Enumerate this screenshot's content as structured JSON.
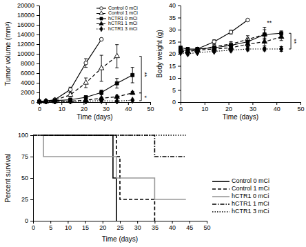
{
  "chart_data": [
    {
      "type": "line",
      "ylabel": "Tumor volume (mm³)",
      "xlabel": "Time (days)",
      "xlim": [
        0,
        50
      ],
      "xticks": [
        0,
        10,
        20,
        30,
        40,
        50
      ],
      "ylim": [
        0,
        20000
      ],
      "yticks": [
        0,
        2000,
        4000,
        6000,
        8000,
        10000,
        12000,
        14000,
        16000,
        18000,
        20000
      ],
      "legend": "upper right",
      "series": [
        {
          "name": "Control 0 mCi",
          "color": "#000000",
          "marker": "circle-open",
          "line_style": "solid",
          "x": [
            0,
            3,
            7,
            14,
            21,
            28
          ],
          "values": [
            150,
            250,
            500,
            2600,
            8100,
            13000
          ],
          "errors": [
            50,
            80,
            150,
            500,
            900,
            null
          ]
        },
        {
          "name": "Control 1 mCi",
          "color": "#000000",
          "marker": "triangle-open",
          "line_style": "dashed",
          "x": [
            0,
            3,
            7,
            14,
            21,
            28,
            35
          ],
          "values": [
            150,
            200,
            400,
            1500,
            4000,
            7000,
            9500
          ],
          "errors": [
            50,
            60,
            100,
            400,
            1000,
            2700,
            2400
          ]
        },
        {
          "name": "hCTR1 0 mCi",
          "color": "#000000",
          "marker": "square",
          "line_style": "solid",
          "x": [
            0,
            3,
            7,
            14,
            21,
            28,
            35,
            42
          ],
          "values": [
            100,
            150,
            300,
            500,
            1000,
            2000,
            3900,
            5600
          ],
          "errors": [
            30,
            40,
            60,
            100,
            300,
            500,
            1000,
            1600
          ]
        },
        {
          "name": "hCTR1 1 mCi",
          "color": "#000000",
          "marker": "triangle",
          "line_style": "dashed",
          "x": [
            0,
            3,
            7,
            14,
            21,
            28,
            35,
            42
          ],
          "values": [
            100,
            120,
            150,
            200,
            400,
            800,
            1100,
            1900
          ],
          "errors": [
            30,
            30,
            40,
            50,
            100,
            150,
            300,
            300
          ]
        },
        {
          "name": "hCTR1 3 mCi",
          "color": "#000000",
          "marker": "diamond",
          "line_style": "dotted",
          "x": [
            0,
            3,
            7,
            14,
            21,
            28,
            35,
            42
          ],
          "values": [
            100,
            100,
            100,
            150,
            200,
            300,
            200,
            400
          ],
          "errors": [
            30,
            30,
            30,
            40,
            50,
            80,
            60,
            100
          ]
        }
      ],
      "annotations": [
        {
          "text": "**",
          "x": 46,
          "y1": 1900,
          "y2": 9500
        },
        {
          "text": "*",
          "x": 46,
          "y1": 300,
          "y2": 1900
        }
      ]
    },
    {
      "type": "line",
      "ylabel": "Body weight (g)",
      "xlabel": "Time (days)",
      "xlim": [
        0,
        50
      ],
      "xticks": [
        0,
        10,
        20,
        30,
        40,
        50
      ],
      "ylim": [
        0,
        40
      ],
      "yticks": [
        0,
        5,
        10,
        15,
        20,
        25,
        30,
        35,
        40
      ],
      "series": [
        {
          "color": "#000000",
          "marker": "circle-open",
          "line_style": "solid",
          "x": [
            0,
            3,
            7,
            14,
            21,
            28
          ],
          "values": [
            21.5,
            21.5,
            22,
            25,
            29,
            34
          ],
          "errors": [
            0.5,
            0.5,
            0.6,
            0.8,
            0.8,
            null
          ]
        },
        {
          "color": "#000000",
          "marker": "triangle-open",
          "line_style": "dashed",
          "x": [
            0,
            3,
            7,
            14,
            21,
            28,
            35
          ],
          "values": [
            21,
            21,
            21.5,
            23,
            24,
            26,
            28
          ],
          "errors": [
            0.5,
            0.5,
            0.6,
            0.8,
            1,
            1.5,
            3
          ]
        },
        {
          "color": "#000000",
          "marker": "square",
          "line_style": "solid",
          "x": [
            0,
            3,
            7,
            14,
            21,
            28,
            35,
            42
          ],
          "values": [
            22.5,
            22,
            22,
            22.5,
            23.5,
            25,
            28,
            28.5
          ],
          "errors": [
            0.6,
            0.6,
            0.6,
            0.8,
            1,
            1.5,
            2,
            1
          ]
        },
        {
          "color": "#000000",
          "marker": "triangle",
          "line_style": "dashed",
          "x": [
            0,
            3,
            7,
            14,
            21,
            28,
            35,
            42
          ],
          "values": [
            22,
            21,
            21.5,
            22,
            22.5,
            24,
            25,
            27
          ],
          "errors": [
            0.5,
            0.5,
            0.5,
            0.6,
            0.8,
            1,
            1.5,
            1.5
          ]
        },
        {
          "color": "#000000",
          "marker": "diamond",
          "line_style": "dotted",
          "x": [
            0,
            3,
            7,
            14,
            21,
            28,
            35,
            42
          ],
          "values": [
            20.5,
            20,
            20.5,
            21,
            21.5,
            22,
            22,
            22
          ],
          "errors": [
            0.5,
            0.5,
            0.5,
            0.5,
            0.6,
            0.8,
            0.8,
            1
          ]
        }
      ],
      "annotations": [
        {
          "text": "**",
          "x": 46,
          "y1": 22,
          "y2": 28.5
        },
        {
          "text": "**",
          "x": 37,
          "y": 32
        }
      ]
    },
    {
      "type": "step",
      "ylabel": "Percent survival",
      "xlabel": "Time (days)",
      "xlim": [
        0,
        50
      ],
      "xticks": [
        0,
        5,
        10,
        15,
        20,
        25,
        30,
        35,
        40,
        45,
        50
      ],
      "ylim": [
        0,
        100
      ],
      "yticks": [
        0,
        25,
        50,
        75,
        100
      ],
      "legend": "right",
      "series": [
        {
          "name": "Control 0 mCi",
          "color": "#000000",
          "line_style": "solid",
          "x": [
            0,
            23,
            24
          ],
          "values": [
            100,
            50,
            0
          ]
        },
        {
          "name": "Control 1 mCi",
          "color": "#000000",
          "line_style": "dashed",
          "x": [
            0,
            24,
            25,
            35
          ],
          "values": [
            100,
            75,
            25,
            0
          ]
        },
        {
          "name": "hCTR1 0 mCi",
          "color": "#999999",
          "line_style": "solid",
          "x": [
            0,
            3,
            24,
            35,
            44
          ],
          "values": [
            100,
            75,
            50,
            25,
            25
          ]
        },
        {
          "name": "hCTR1 1 mCi",
          "color": "#000000",
          "line_style": "dash-dot",
          "x": [
            0,
            35,
            44
          ],
          "values": [
            100,
            75,
            75
          ]
        },
        {
          "name": "hCTR1 3 mCi",
          "color": "#000000",
          "line_style": "dotted",
          "x": [
            0,
            44
          ],
          "values": [
            100,
            100
          ]
        }
      ]
    }
  ]
}
